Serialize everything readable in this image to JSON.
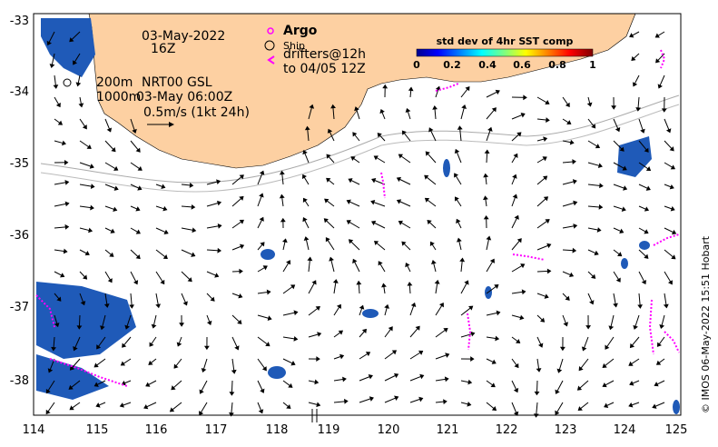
{
  "header": {
    "date": "03-May-2022",
    "hour": "16Z",
    "depth_200": "200m",
    "depth_1000": "1000m",
    "product": "NRT00 GSL",
    "product_time": "03-May 06:00Z",
    "scale_label": "0.5m/s (1kt 24h)"
  },
  "legend": {
    "argo_label": "Argo",
    "ship_label": "Ship",
    "drifters_line1": "drifters@12h",
    "drifters_line2": "to 04/05 12Z"
  },
  "colorbar": {
    "title": "std dev of 4hr SST comp",
    "ticks": [
      "0",
      "0.2",
      "0.4",
      "0.6",
      "0.8",
      "1"
    ],
    "range": [
      0,
      1
    ]
  },
  "axes": {
    "x_ticks": [
      "114",
      "115",
      "116",
      "117",
      "118",
      "119",
      "120",
      "121",
      "122",
      "123",
      "124",
      "125"
    ],
    "y_ticks": [
      "-33",
      "-34",
      "-35",
      "-36",
      "-37",
      "-38"
    ]
  },
  "credit": "© IMOS 06-May-2022 15:51 Hobart",
  "colors": {
    "land": "#fdd0a2",
    "argo": "#ff00ff",
    "drifter": "#ff00ff",
    "arrow": "#000000",
    "isobath": "#aaaaaa",
    "sst_patch": "#1f5ab8"
  }
}
